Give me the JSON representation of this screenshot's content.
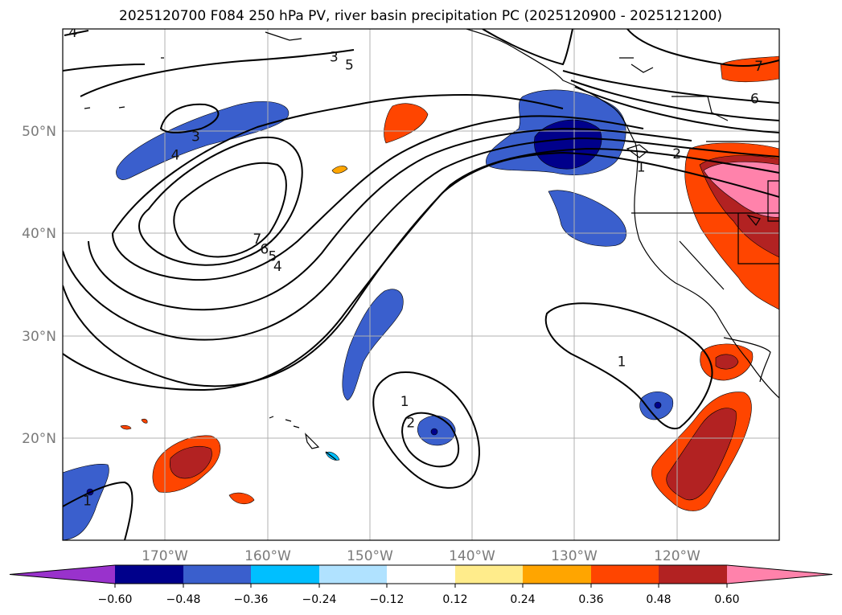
{
  "chart_data": {
    "type": "contour-map",
    "title": "2025120700 F084 250 hPa PV, river basin precipitation PC (2025120900 - 2025121200)",
    "lon_range": [
      -180,
      -110
    ],
    "lat_range": [
      10,
      60
    ],
    "x_ticks": [
      {
        "value": -170,
        "label": "170°W"
      },
      {
        "value": -160,
        "label": "160°W"
      },
      {
        "value": -150,
        "label": "150°W"
      },
      {
        "value": -140,
        "label": "140°W"
      },
      {
        "value": -130,
        "label": "130°W"
      },
      {
        "value": -120,
        "label": "120°W"
      }
    ],
    "y_ticks": [
      {
        "value": 50,
        "label": "50°N"
      },
      {
        "value": 40,
        "label": "40°N"
      },
      {
        "value": 30,
        "label": "30°N"
      },
      {
        "value": 20,
        "label": "20°N"
      }
    ],
    "grid": true,
    "colorbar": {
      "orientation": "horizontal",
      "extend": "both",
      "colors": [
        "#9932cc",
        "#00008b",
        "#3a5fcd",
        "#00bfff",
        "#b0e2ff",
        "#ffffff",
        "#ffec8b",
        "#ffa500",
        "#ff4500",
        "#b22222",
        "#ff82ab"
      ],
      "tick_labels": [
        "−0.60",
        "−0.48",
        "−0.36",
        "−0.24",
        "−0.12",
        "0.12",
        "0.24",
        "0.36",
        "0.48",
        "0.60"
      ]
    },
    "pv_contour_labels": [
      {
        "text": "4",
        "lon": -179,
        "lat": 59.7
      },
      {
        "text": "3",
        "lon": -153.5,
        "lat": 57.3
      },
      {
        "text": "5",
        "lon": -152,
        "lat": 56.5
      },
      {
        "text": "3",
        "lon": -167,
        "lat": 49.5
      },
      {
        "text": "4",
        "lon": -169,
        "lat": 47.7
      },
      {
        "text": "7",
        "lon": -161,
        "lat": 39.5
      },
      {
        "text": "6",
        "lon": -160.3,
        "lat": 38.5
      },
      {
        "text": "5",
        "lon": -159.5,
        "lat": 37.8
      },
      {
        "text": "4",
        "lon": -159,
        "lat": 36.8
      },
      {
        "text": "7",
        "lon": -112,
        "lat": 56.4
      },
      {
        "text": "6",
        "lon": -112.4,
        "lat": 53.2
      },
      {
        "text": "2",
        "lon": -120,
        "lat": 47.8
      },
      {
        "text": "1",
        "lon": -123.5,
        "lat": 46.5
      },
      {
        "text": "1",
        "lon": -125.4,
        "lat": 27.5
      },
      {
        "text": "1",
        "lon": -146.6,
        "lat": 23.6
      },
      {
        "text": "2",
        "lon": -146,
        "lat": 21.5
      },
      {
        "text": "1",
        "lon": -177.6,
        "lat": 13.9
      }
    ]
  }
}
